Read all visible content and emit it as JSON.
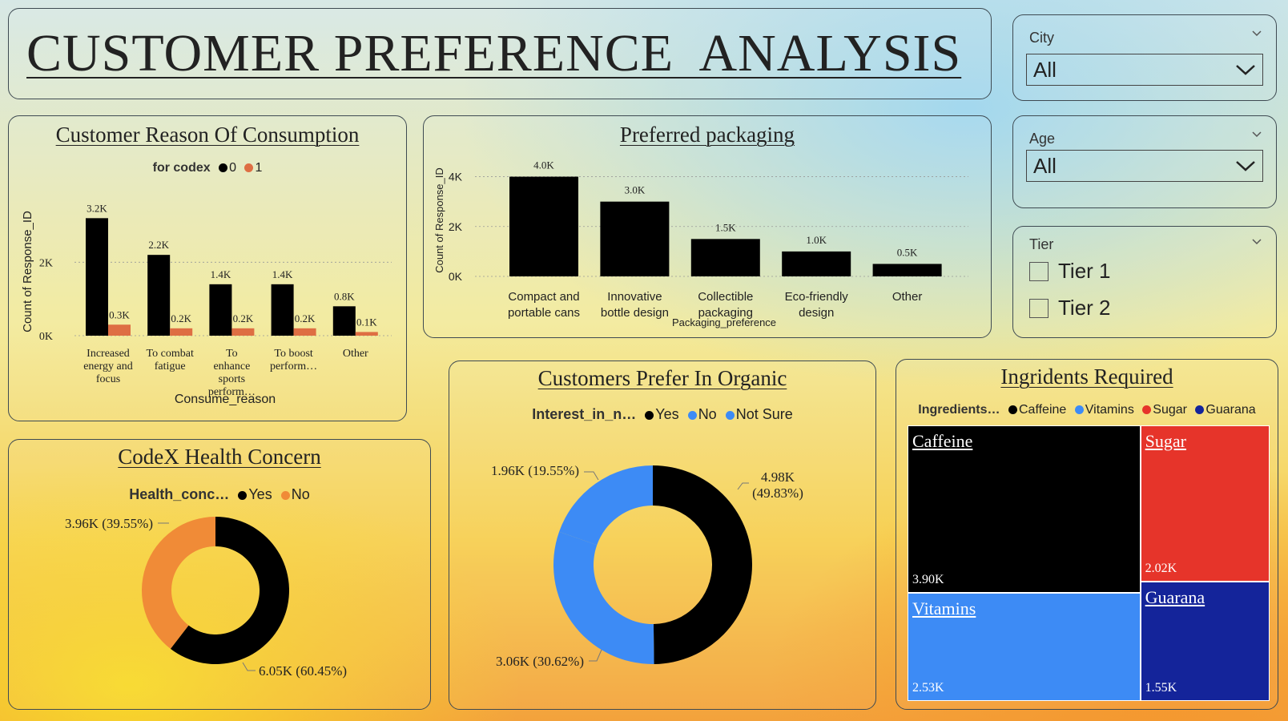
{
  "dashboard": {
    "title": "CUSTOMER PREFERENCE  ANALYSIS"
  },
  "colors": {
    "black": "#000000",
    "orange_series": "#de6e43",
    "orange_donut": "#f08b37",
    "blue": "#3d8bf5",
    "red": "#e6342a",
    "navy": "#14249a",
    "caffeine": "#000000"
  },
  "filters": {
    "city": {
      "label": "City",
      "value": "All"
    },
    "age": {
      "label": "Age",
      "value": "All"
    },
    "tier": {
      "label": "Tier",
      "options": [
        "Tier 1",
        "Tier 2"
      ]
    }
  },
  "chart_data": [
    {
      "id": "consumption",
      "type": "bar",
      "title": "Customer Reason Of Consumption",
      "xlabel": "Consume_reason",
      "ylabel": "Count of Response_ID",
      "ylim": [
        0,
        3600
      ],
      "yticks": [
        {
          "v": 0,
          "label": "0K"
        },
        {
          "v": 2000,
          "label": "2K"
        }
      ],
      "legend_title": "for codex",
      "categories": [
        [
          "Increased",
          "energy and",
          "focus"
        ],
        [
          "To combat",
          "fatigue"
        ],
        [
          "To",
          "enhance",
          "sports",
          "perform…"
        ],
        [
          "To boost",
          "perform…"
        ],
        [
          "Other"
        ]
      ],
      "series": [
        {
          "name": "0",
          "color": "#000000",
          "values": [
            3200,
            2200,
            1400,
            1400,
            800
          ],
          "labels": [
            "3.2K",
            "2.2K",
            "1.4K",
            "1.4K",
            "0.8K"
          ]
        },
        {
          "name": "1",
          "color": "#de6e43",
          "values": [
            300,
            200,
            200,
            200,
            100
          ],
          "labels": [
            "0.3K",
            "0.2K",
            "0.2K",
            "0.2K",
            "0.1K"
          ]
        }
      ]
    },
    {
      "id": "packaging",
      "type": "bar",
      "title": "Preferred packaging",
      "xlabel": "Packaging_preference",
      "ylabel": "Count of Response_ID",
      "ylim": [
        0,
        4500
      ],
      "yticks": [
        {
          "v": 0,
          "label": "0K"
        },
        {
          "v": 2000,
          "label": "2K"
        },
        {
          "v": 4000,
          "label": "4K"
        }
      ],
      "categories": [
        [
          "Compact and",
          "portable cans"
        ],
        [
          "Innovative",
          "bottle design"
        ],
        [
          "Collectible",
          "packaging"
        ],
        [
          "Eco-friendly",
          "design"
        ],
        [
          "Other"
        ]
      ],
      "values": [
        4000,
        3000,
        1500,
        1000,
        500
      ],
      "labels": [
        "4.0K",
        "3.0K",
        "1.5K",
        "1.0K",
        "0.5K"
      ]
    },
    {
      "id": "health",
      "type": "pie",
      "title": "CodeX Health Concern",
      "legend_title": "Health_conc…",
      "slices": [
        {
          "name": "Yes",
          "value": 6050,
          "color": "#000000",
          "label": "6.05K (60.45%)"
        },
        {
          "name": "No",
          "value": 3960,
          "color": "#f08b37",
          "label": "3.96K (39.55%)"
        }
      ]
    },
    {
      "id": "organic",
      "type": "pie",
      "title": "Customers Prefer In Organic",
      "legend_title": "Interest_in_n…",
      "slices": [
        {
          "name": "Yes",
          "value": 4980,
          "color": "#000000",
          "label": [
            "4.98K",
            "(49.83%)"
          ]
        },
        {
          "name": "No",
          "value": 3060,
          "color": "#3d8bf5",
          "label": [
            "3.06K (30.62%)"
          ]
        },
        {
          "name": "Not Sure",
          "value": 1960,
          "color": "#3d8bf5",
          "label": [
            "1.96K (19.55%)"
          ]
        }
      ]
    },
    {
      "id": "ingredients",
      "type": "treemap",
      "title": "Ingridents Required",
      "legend_title": "Ingredients…",
      "items": [
        {
          "name": "Caffeine",
          "value": 3900,
          "label": "3.90K",
          "color": "#000000"
        },
        {
          "name": "Vitamins",
          "value": 2530,
          "label": "2.53K",
          "color": "#3d8bf5"
        },
        {
          "name": "Sugar",
          "value": 2020,
          "label": "2.02K",
          "color": "#e6342a"
        },
        {
          "name": "Guarana",
          "value": 1550,
          "label": "1.55K",
          "color": "#14249a"
        }
      ]
    }
  ]
}
